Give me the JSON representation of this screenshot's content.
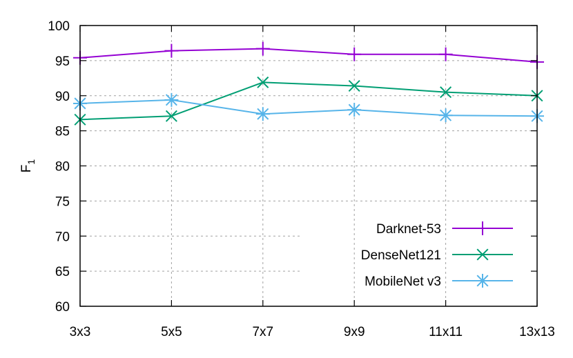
{
  "chart_data": {
    "type": "line",
    "title": "",
    "xlabel": "",
    "ylabel": "F",
    "ylabel_subscript": "1",
    "categories": [
      "3x3",
      "5x5",
      "7x7",
      "9x9",
      "11x11",
      "13x13"
    ],
    "ylim": [
      60,
      100
    ],
    "yticks": [
      60,
      65,
      70,
      75,
      80,
      85,
      90,
      95,
      100
    ],
    "grid": true,
    "legend_position": "bottom-right",
    "series": [
      {
        "name": "Darknet-53",
        "color": "#9400d3",
        "marker": "plus",
        "values": [
          95.4,
          96.4,
          96.7,
          95.9,
          95.9,
          94.8
        ]
      },
      {
        "name": "DenseNet121",
        "color": "#009e73",
        "marker": "cross",
        "values": [
          86.6,
          87.1,
          91.9,
          91.4,
          90.5,
          90.0
        ]
      },
      {
        "name": "MobileNet v3",
        "color": "#56b4e9",
        "marker": "star",
        "values": [
          88.9,
          89.4,
          87.4,
          88.0,
          87.2,
          87.1
        ]
      }
    ]
  }
}
